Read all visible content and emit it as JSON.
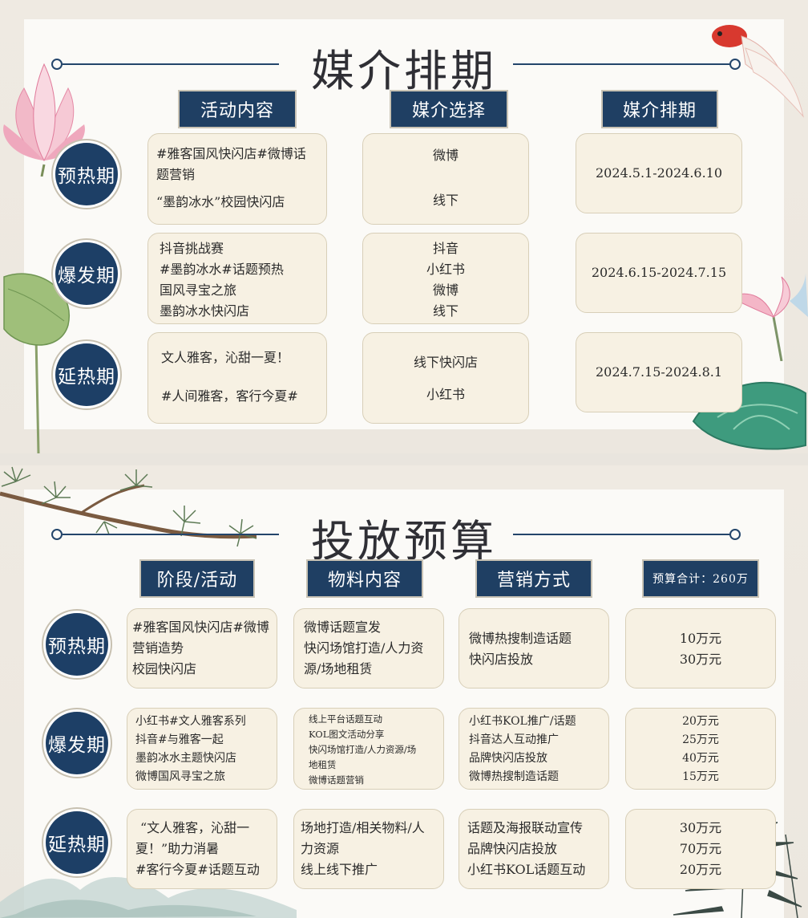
{
  "slide1": {
    "title": "媒介排期",
    "headers": [
      "活动内容",
      "媒介选择",
      "媒介排期"
    ],
    "rows": [
      {
        "phase": "预热期",
        "activities": [
          "#雅客国风快闪店#微博话",
          "题营销",
          "“墨韵冰水”校园快闪店"
        ],
        "media": [
          "微博",
          "线下"
        ],
        "schedule": "2024.5.1-2024.6.10"
      },
      {
        "phase": "爆发期",
        "activities": [
          "抖音挑战赛",
          "#墨韵冰水#话题预热",
          "国风寻宝之旅",
          "墨韵冰水快闪店"
        ],
        "media": [
          "抖音",
          "小红书",
          "微博",
          "线下"
        ],
        "schedule": "2024.6.15-2024.7.15"
      },
      {
        "phase": "延热期",
        "activities": [
          "文人雅客，沁甜一夏！",
          "#人间雅客，客行今夏#"
        ],
        "media": [
          "线下快闪店",
          "小红书"
        ],
        "schedule": "2024.7.15-2024.8.1"
      }
    ]
  },
  "slide2": {
    "title": "投放预算",
    "headers": [
      "阶段/活动",
      "物料内容",
      "营销方式",
      "预算合计：260万"
    ],
    "rows": [
      {
        "phase": "预热期",
        "activities": [
          "#雅客国风快闪店#微博",
          "营销造势",
          "校园快闪店"
        ],
        "materials": [
          "微博话题宣发",
          "快闪场馆打造/人力资",
          "源/场地租赁"
        ],
        "methods": [
          "微博热搜制造话题",
          "快闪店投放"
        ],
        "budget": [
          "10万元",
          "30万元"
        ]
      },
      {
        "phase": "爆发期",
        "activities": [
          "小红书#文人雅客系列",
          "抖音#与雅客一起",
          "墨韵冰水主题快闪店",
          "微博国风寻宝之旅"
        ],
        "materials": [
          "线上平台话题互动",
          "KOL图文活动分享",
          "快闪场馆打造/人力资源/场",
          "地租赁",
          "微博话题营销"
        ],
        "methods": [
          "小红书KOL推广/话题",
          "抖音达人互动推广",
          "品牌快闪店投放",
          "微博热搜制造话题"
        ],
        "budget": [
          "20万元",
          "25万元",
          "40万元",
          "15万元"
        ]
      },
      {
        "phase": "延热期",
        "activities": [
          "“文人雅客，沁甜一",
          "夏！”助力消暑",
          "#客行今夏#话题互动"
        ],
        "materials": [
          "场地打造/相关物料/人",
          "力资源",
          "线上线下推广"
        ],
        "methods": [
          "话题及海报联动宣传",
          "品牌快闪店投放",
          "小红书KOL话题互动"
        ],
        "budget": [
          "30万元",
          "70万元",
          "20万元"
        ]
      }
    ]
  },
  "colors": {
    "navy": "#1f3f63",
    "cream": "#f7f1e3",
    "panel": "#fbfaf7"
  },
  "icons": [
    "lotus-flower-icon",
    "goldfish-icon",
    "lotus-leaf-icon",
    "pine-branch-icon",
    "bamboo-icon",
    "mountain-icon"
  ]
}
